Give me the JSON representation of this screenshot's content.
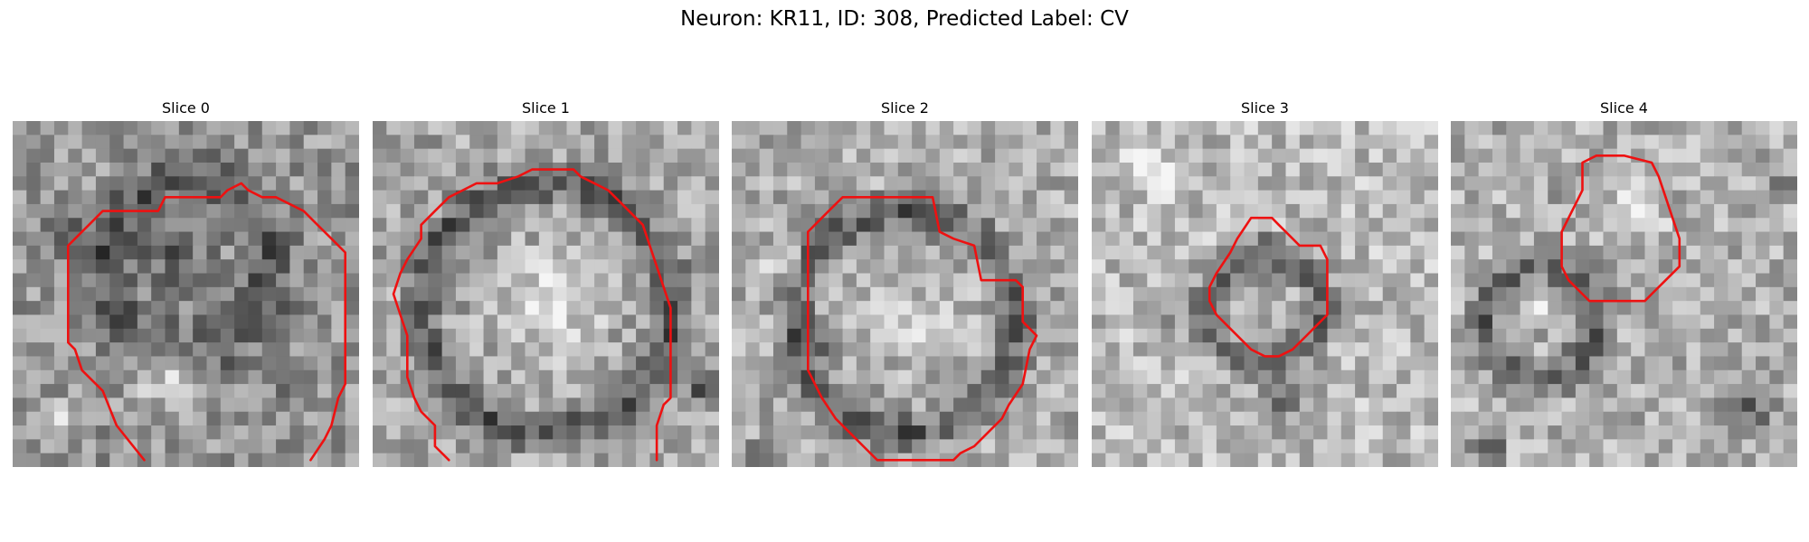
{
  "figure": {
    "title": "Neuron: KR11, ID: 308, Predicted Label: CV"
  },
  "panels": [
    {
      "title": "Slice 0",
      "content": "grayscale EM image patch with red contour (open at bottom)"
    },
    {
      "title": "Slice 1",
      "content": "grayscale EM image patch with red contour (open at bottom)"
    },
    {
      "title": "Slice 2",
      "content": "grayscale EM image patch with red closed contour"
    },
    {
      "title": "Slice 3",
      "content": "grayscale EM image patch with small red octagonal contour"
    },
    {
      "title": "Slice 4",
      "content": "grayscale EM image patch with small red contour near top"
    }
  ],
  "colors": {
    "contour": "#ee1111",
    "background": "#ffffff"
  }
}
